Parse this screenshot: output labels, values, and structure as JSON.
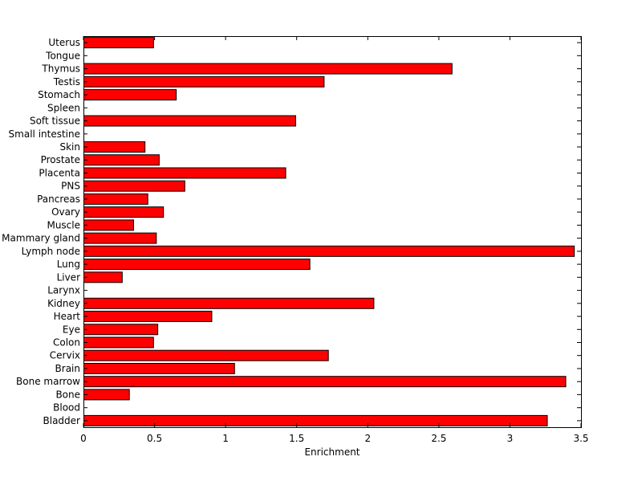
{
  "chart_data": {
    "type": "bar",
    "orientation": "horizontal",
    "categories": [
      "Uterus",
      "Tongue",
      "Thymus",
      "Testis",
      "Stomach",
      "Spleen",
      "Soft tissue",
      "Small intestine",
      "Skin",
      "Prostate",
      "Placenta",
      "PNS",
      "Pancreas",
      "Ovary",
      "Muscle",
      "Mammary gland",
      "Lymph node",
      "Lung",
      "Liver",
      "Larynx",
      "Kidney",
      "Heart",
      "Eye",
      "Colon",
      "Cervix",
      "Brain",
      "Bone marrow",
      "Bone",
      "Blood",
      "Bladder"
    ],
    "values": [
      0.49,
      0,
      2.59,
      1.69,
      0.65,
      0,
      1.49,
      0,
      0.43,
      0.53,
      1.42,
      0.71,
      0.45,
      0.56,
      0.35,
      0.51,
      3.45,
      1.59,
      0.27,
      0,
      2.04,
      0.9,
      0.52,
      0.49,
      1.72,
      1.06,
      3.39,
      0.32,
      0,
      3.26
    ],
    "xlabel": "Enrichment",
    "ylabel": "",
    "xlim": [
      0,
      3.5
    ],
    "xticks": [
      "0",
      "0.5",
      "1",
      "1.5",
      "2",
      "2.5",
      "3",
      "3.5"
    ],
    "grid": false,
    "bar_color": "#ff0000",
    "edge_color": "#000000"
  }
}
